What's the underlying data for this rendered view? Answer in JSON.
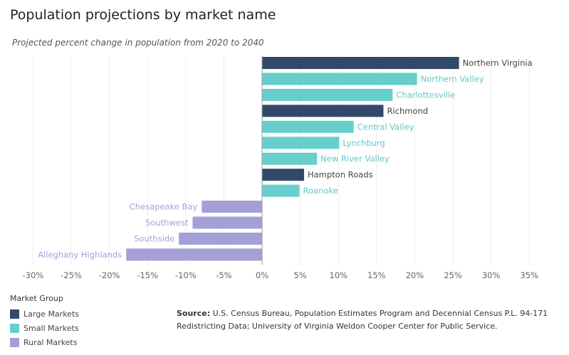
{
  "title": "Population projections by market name",
  "subtitle": "Projected percent change in population from 2020 to 2040",
  "chart_data": {
    "type": "bar",
    "orientation": "horizontal",
    "categories": [
      "Northern Virginia",
      "Northern Valley",
      "Charlottesville",
      "Richmond",
      "Central Valley",
      "Lynchburg",
      "New River Valley",
      "Hampton Roads",
      "Roanoke",
      "Chesapeake Bay",
      "Southwest",
      "Southside",
      "Alleghany Highlands"
    ],
    "values": [
      25.8,
      20.3,
      17.1,
      15.9,
      12.0,
      10.1,
      7.2,
      5.5,
      4.9,
      -7.9,
      -9.1,
      -10.9,
      -17.8
    ],
    "groups": [
      "Large Markets",
      "Small Markets",
      "Small Markets",
      "Large Markets",
      "Small Markets",
      "Small Markets",
      "Small Markets",
      "Large Markets",
      "Small Markets",
      "Rural Markets",
      "Rural Markets",
      "Rural Markets",
      "Rural Markets"
    ],
    "xlim": [
      -30,
      35
    ],
    "xticks": [
      -30,
      -25,
      -20,
      -15,
      -10,
      -5,
      0,
      5,
      10,
      15,
      20,
      25,
      30,
      35
    ],
    "xtick_labels": [
      "-30%",
      "-25%",
      "-20%",
      "-15%",
      "-10%",
      "-5%",
      "0%",
      "5%",
      "10%",
      "15%",
      "20%",
      "25%",
      "30%",
      "35%"
    ],
    "grid": true,
    "legend_placement": "bottom-left"
  },
  "legend": {
    "title": "Market Group",
    "items": [
      {
        "label": "Large Markets",
        "color": "#33496b"
      },
      {
        "label": "Small Markets",
        "color": "#66cfcc"
      },
      {
        "label": "Rural Markets",
        "color": "#a49fd6"
      }
    ]
  },
  "group_colors": {
    "Large Markets": "#33496b",
    "Small Markets": "#66cfcc",
    "Rural Markets": "#a49fd6"
  },
  "label_colors": {
    "Large Markets": "#444444",
    "Small Markets": "#5ec9c6",
    "Rural Markets": "#a49fd6"
  },
  "source": {
    "label": "Source:",
    "text": " U.S. Census Bureau, Population Estimates Program and Decennial Census P.L. 94-171 Redistricting Data; University of Virginia Weldon Cooper Center for Public Service."
  }
}
